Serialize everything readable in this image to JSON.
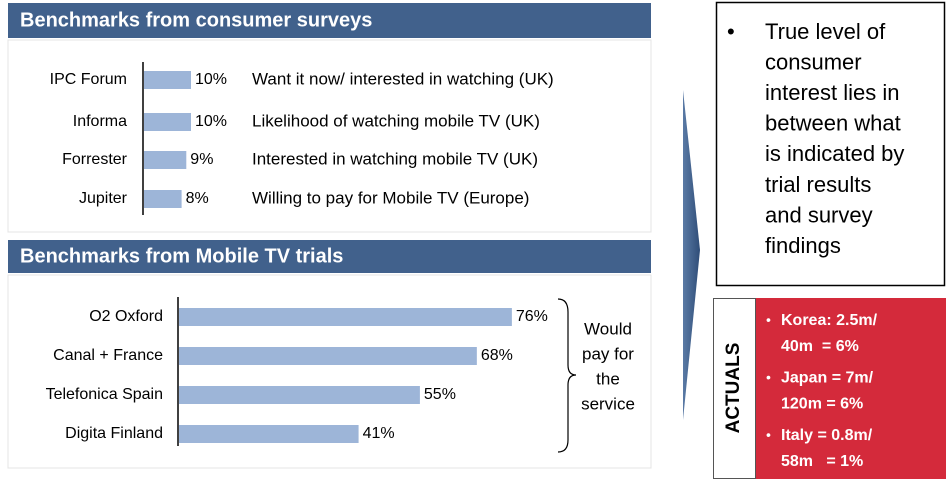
{
  "chart_data": [
    {
      "type": "bar",
      "title": "Benchmarks from consumer surveys",
      "categories": [
        "IPC Forum",
        "Informa",
        "Forrester",
        "Jupiter"
      ],
      "values": [
        10,
        10,
        9,
        8
      ],
      "value_labels": [
        "10%",
        "10%",
        "9%",
        "8%"
      ],
      "annotations": [
        "Want it now/ interested in watching (UK)",
        "Likelihood of watching mobile TV (UK)",
        "Interested in watching mobile TV (UK)",
        "Willing to pay for Mobile TV (Europe)"
      ],
      "color": "#9db5d8"
    },
    {
      "type": "bar",
      "title": "Benchmarks from Mobile TV trials",
      "categories": [
        "O2 Oxford",
        "Canal + France",
        "Telefonica Spain",
        "Digita Finland"
      ],
      "values": [
        76,
        68,
        55,
        41
      ],
      "value_labels": [
        "76%",
        "68%",
        "55%",
        "41%"
      ],
      "bracket_label": [
        "Would",
        "pay for",
        "the",
        "service"
      ],
      "color": "#9db5d8"
    }
  ],
  "callout": {
    "lines": [
      "True level of",
      "consumer",
      "interest lies in",
      "between what",
      "is indicated by",
      "trial results",
      "and survey",
      "findings"
    ]
  },
  "actuals": {
    "title": "ACTUALS",
    "items": [
      [
        "Korea: 2.5m/",
        "40m  = 6%"
      ],
      [
        "Japan = 7m/",
        "120m = 6%"
      ],
      [
        "Italy = 0.8m/",
        "58m   = 1%"
      ]
    ]
  }
}
